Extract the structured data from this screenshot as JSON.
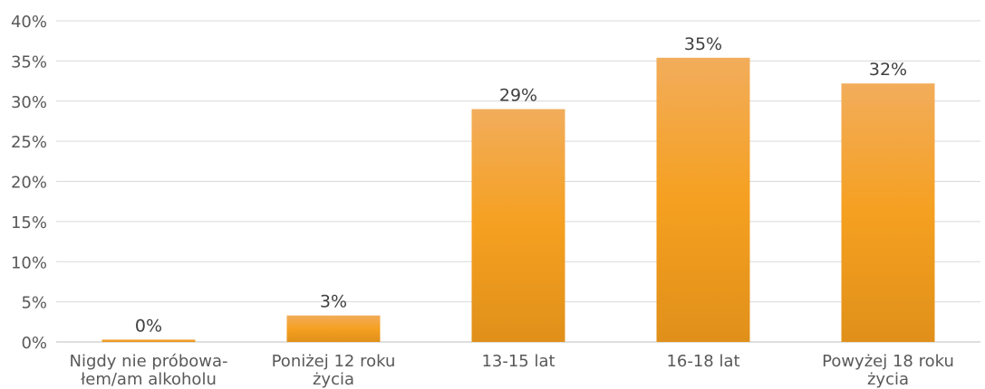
{
  "chart_data": {
    "type": "bar",
    "categories": [
      [
        "Nigdy nie próbowa-",
        "łem/am alkoholu"
      ],
      [
        "Poniżej 12 roku",
        "życia"
      ],
      [
        "13-15 lat"
      ],
      [
        "16-18 lat"
      ],
      [
        "Powyżej 18 roku",
        "życia"
      ]
    ],
    "values": [
      0.3,
      3.3,
      29,
      35.4,
      32.2
    ],
    "data_labels": [
      "0%",
      "3%",
      "29%",
      "35%",
      "32%"
    ],
    "yticks": [
      0,
      5,
      10,
      15,
      20,
      25,
      30,
      35,
      40
    ],
    "ytick_labels": [
      "0%",
      "5%",
      "10%",
      "15%",
      "20%",
      "25%",
      "30%",
      "35%",
      "40%"
    ],
    "ylim": [
      0,
      40
    ],
    "grid": true,
    "legend": "none",
    "title": "",
    "xlabel": "",
    "ylabel": "",
    "colors": {
      "bar_top": "#f2ad5b",
      "bar_mid": "#f5a020",
      "bar_bottom": "#e0901a",
      "grid": "#d9d9d9",
      "text": "#595959"
    }
  }
}
